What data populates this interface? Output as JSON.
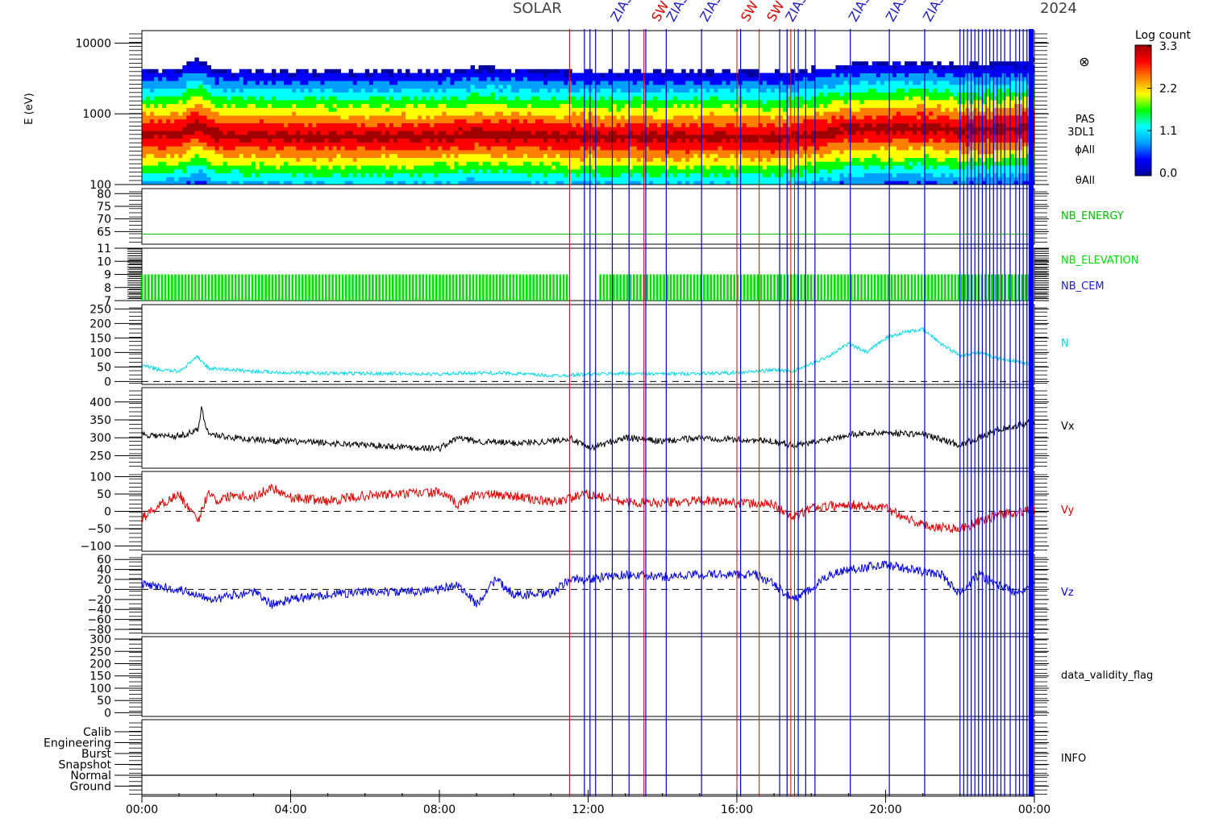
{
  "header": {
    "title_left": "SOLAR",
    "title_right": "2024"
  },
  "colorbar": {
    "title": "Log count",
    "ticks": [
      "3.3",
      "2.2",
      "1.1",
      "0.0"
    ],
    "stops": [
      "#0000a0",
      "#0000ff",
      "#00a0ff",
      "#00ffff",
      "#00ff00",
      "#ffff00",
      "#ff8000",
      "#ff0000",
      "#a00000"
    ]
  },
  "time_axis": {
    "tick_labels": [
      "00:00",
      "04:00",
      "08:00",
      "12:00",
      "16:00",
      "20:00",
      "00:00"
    ],
    "tick_hours": [
      0,
      4,
      8,
      12,
      16,
      20,
      24
    ],
    "range_hours": [
      0,
      24
    ]
  },
  "event_markers": {
    "red_hours": [
      11.5,
      13.5,
      16.0,
      16.6,
      17.45,
      17.55
    ],
    "blue_hours": [
      11.9,
      12.05,
      12.2,
      12.65,
      13.1,
      13.55,
      14.1,
      15.05,
      16.1,
      17.15,
      17.35,
      17.65,
      17.85,
      18.1,
      19.05,
      20.1,
      21.05,
      22.0,
      22.1,
      22.2,
      22.3,
      22.4,
      22.5,
      22.6,
      22.7,
      22.8,
      22.9,
      23.0,
      23.1,
      23.2,
      23.35,
      23.5,
      23.6,
      23.7,
      23.8,
      23.9,
      23.95
    ]
  },
  "top_labels": [
    {
      "text": "ZIAS",
      "hour": 12.8,
      "color": "#2020c0"
    },
    {
      "text": "SW",
      "hour": 13.9,
      "color": "#e00000"
    },
    {
      "text": "ZIAS",
      "hour": 14.3,
      "color": "#2020c0"
    },
    {
      "text": "ZIAS",
      "hour": 15.2,
      "color": "#2020c0"
    },
    {
      "text": "SW",
      "hour": 16.3,
      "color": "#e00000"
    },
    {
      "text": "SW",
      "hour": 17.0,
      "color": "#e00000"
    },
    {
      "text": "ZIAS",
      "hour": 17.5,
      "color": "#2020c0"
    },
    {
      "text": "ZIAS",
      "hour": 19.2,
      "color": "#2020c0"
    },
    {
      "text": "ZIAS",
      "hour": 20.2,
      "color": "#2020c0"
    },
    {
      "text": "ZIAS",
      "hour": 21.2,
      "color": "#2020c0"
    }
  ],
  "chart_data": [
    {
      "id": "pas-3dl1",
      "type": "heatmap",
      "ylabel": "E (eV)",
      "yscale": "log",
      "ylim": [
        100,
        15000
      ],
      "ytick_labels": [
        "10000",
        "1000",
        "100"
      ],
      "ytick_values": [
        10000,
        1000,
        100
      ],
      "side_labels": [
        "PAS",
        "3DL1",
        "ϕAll",
        "θAll"
      ],
      "symbol": "⊗",
      "peak_energy_ev_by_hour": {
        "hours": [
          0,
          1,
          1.5,
          2,
          4,
          6,
          8,
          9,
          10,
          12,
          14,
          16,
          17,
          18,
          19,
          20,
          21,
          22,
          23,
          24
        ],
        "energy": [
          500,
          520,
          700,
          500,
          480,
          470,
          480,
          520,
          500,
          480,
          470,
          480,
          450,
          500,
          600,
          620,
          650,
          580,
          600,
          650
        ]
      }
    },
    {
      "id": "nb-energy",
      "type": "line",
      "ylim": [
        60,
        82
      ],
      "ytick_labels": [
        "80",
        "75",
        "70",
        "65"
      ],
      "ytick_values": [
        80,
        75,
        70,
        65
      ],
      "series": [
        {
          "name": "NB_ENERGY",
          "color": "#00c000",
          "x": [
            0,
            24
          ],
          "y": [
            64,
            64
          ]
        }
      ]
    },
    {
      "id": "nb-elevation",
      "type": "line",
      "ylim": [
        7,
        11
      ],
      "ytick_labels": [
        "11",
        "10",
        "9",
        "8",
        "7"
      ],
      "ytick_values": [
        11,
        10,
        9,
        8,
        7
      ],
      "series": [
        {
          "name": "NB_ELEVATION",
          "color": "#00e000",
          "range": [
            7,
            9
          ],
          "gaps_hours": [
            [
              11.5,
              12.3
            ]
          ]
        },
        {
          "name": "NB_CEM",
          "color": "#2020c0"
        }
      ]
    },
    {
      "id": "density",
      "type": "line",
      "ylim": [
        -10,
        265
      ],
      "ytick_labels": [
        "250",
        "200",
        "150",
        "100",
        "50",
        "0"
      ],
      "ytick_values": [
        250,
        200,
        150,
        100,
        50,
        0
      ],
      "zero_line": true,
      "series": [
        {
          "name": "N",
          "color": "#00d8e8",
          "x": [
            0,
            0.5,
            1.0,
            1.5,
            1.8,
            2.5,
            3.0,
            4.0,
            5.0,
            6.0,
            7.0,
            8.0,
            9.0,
            10.0,
            11.0,
            12.0,
            13.0,
            14.0,
            15.0,
            16.0,
            16.5,
            17.0,
            17.5,
            18.0,
            18.5,
            19.0,
            19.5,
            20.0,
            20.5,
            21.0,
            21.5,
            22.0,
            22.5,
            23.0,
            23.5,
            24.0
          ],
          "y": [
            55,
            40,
            35,
            85,
            45,
            40,
            35,
            30,
            28,
            28,
            27,
            25,
            30,
            28,
            20,
            25,
            28,
            26,
            28,
            30,
            35,
            40,
            35,
            60,
            90,
            130,
            100,
            150,
            170,
            180,
            130,
            90,
            100,
            80,
            70,
            55
          ]
        }
      ]
    },
    {
      "id": "vx",
      "type": "line",
      "ylim": [
        215,
        440
      ],
      "ytick_labels": [
        "400",
        "350",
        "300",
        "250"
      ],
      "ytick_values": [
        400,
        350,
        300,
        250
      ],
      "series": [
        {
          "name": "Vx",
          "color": "#000000",
          "x": [
            0,
            0.5,
            1.0,
            1.5,
            1.6,
            1.8,
            2.5,
            3.0,
            4.0,
            5.0,
            6.0,
            7.0,
            8.0,
            8.5,
            9.0,
            10.0,
            11.0,
            11.5,
            12.0,
            13.0,
            14.0,
            15.0,
            16.0,
            17.0,
            17.5,
            18.0,
            19.0,
            20.0,
            21.0,
            22.0,
            22.5,
            23.0,
            24.0
          ],
          "y": [
            310,
            305,
            305,
            320,
            380,
            310,
            300,
            295,
            290,
            285,
            280,
            275,
            270,
            300,
            290,
            285,
            290,
            300,
            270,
            300,
            290,
            300,
            295,
            290,
            280,
            285,
            310,
            315,
            310,
            280,
            300,
            320,
            345
          ]
        }
      ]
    },
    {
      "id": "vy",
      "type": "line",
      "ylim": [
        -115,
        115
      ],
      "ytick_labels": [
        "100",
        "50",
        "0",
        "−50",
        "−100"
      ],
      "ytick_values": [
        100,
        50,
        0,
        -50,
        -100
      ],
      "zero_line": true,
      "series": [
        {
          "name": "Vy",
          "color": "#e00000",
          "x": [
            0,
            0.5,
            1.0,
            1.5,
            1.8,
            2.0,
            2.5,
            3.0,
            3.5,
            4.0,
            5.0,
            6.0,
            7.0,
            8.0,
            8.5,
            9.0,
            10.0,
            11.0,
            12.0,
            13.0,
            14.0,
            15.0,
            16.0,
            17.0,
            17.5,
            18.0,
            19.0,
            20.0,
            21.0,
            22.0,
            22.5,
            23.0,
            24.0
          ],
          "y": [
            -20,
            20,
            50,
            -30,
            60,
            30,
            50,
            40,
            70,
            40,
            30,
            45,
            50,
            55,
            20,
            50,
            45,
            25,
            50,
            25,
            25,
            30,
            25,
            20,
            -20,
            10,
            20,
            10,
            -40,
            -50,
            -30,
            -10,
            5
          ]
        }
      ]
    },
    {
      "id": "vz",
      "type": "line",
      "ylim": [
        -88,
        70
      ],
      "ytick_labels": [
        "60",
        "40",
        "20",
        "0",
        "−20",
        "−40",
        "−60",
        "−80"
      ],
      "ytick_values": [
        60,
        40,
        20,
        0,
        -20,
        -40,
        -60,
        -80
      ],
      "zero_line": true,
      "series": [
        {
          "name": "Vz",
          "color": "#0000e0",
          "x": [
            0,
            0.5,
            1.0,
            1.5,
            2.0,
            2.5,
            3.0,
            3.5,
            4.0,
            5.0,
            6.0,
            7.0,
            8.0,
            8.5,
            9.0,
            9.5,
            10.0,
            11.0,
            11.5,
            12.0,
            13.0,
            14.0,
            15.0,
            16.0,
            16.5,
            17.0,
            17.5,
            18.0,
            18.5,
            19.0,
            20.0,
            21.0,
            21.5,
            22.0,
            22.5,
            23.0,
            23.5,
            24.0
          ],
          "y": [
            10,
            5,
            0,
            -10,
            -20,
            -10,
            -5,
            -30,
            -20,
            -10,
            -5,
            -5,
            0,
            10,
            -30,
            20,
            -10,
            -10,
            20,
            20,
            30,
            25,
            30,
            30,
            30,
            10,
            -20,
            0,
            30,
            40,
            50,
            35,
            30,
            -10,
            30,
            10,
            -5,
            10
          ]
        }
      ]
    },
    {
      "id": "data-validity-flag",
      "type": "line",
      "ylim": [
        -15,
        310
      ],
      "ytick_labels": [
        "300",
        "250",
        "200",
        "150",
        "100",
        "50",
        "0"
      ],
      "ytick_values": [
        300,
        250,
        200,
        150,
        100,
        50,
        0
      ],
      "series": [
        {
          "name": "data_validity_flag"
        }
      ]
    },
    {
      "id": "info",
      "type": "line",
      "categories": [
        "Calib",
        "Engineering",
        "Burst",
        "Snapshot",
        "Normal",
        "Ground"
      ],
      "series": [
        {
          "name": "INFO",
          "color": "#000000",
          "level": "Normal"
        }
      ]
    }
  ]
}
